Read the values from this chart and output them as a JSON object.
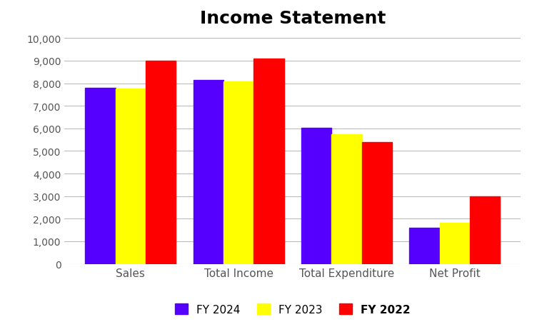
{
  "title": "Income Statement",
  "categories": [
    "Sales",
    "Total Income",
    "Total Expenditure",
    "Net Profit"
  ],
  "series": [
    {
      "label": "FY 2024",
      "color": "#5500FF",
      "values": [
        7800,
        8150,
        6020,
        1600
      ]
    },
    {
      "label": "FY 2023",
      "color": "#FFFF00",
      "values": [
        7750,
        8070,
        5750,
        1820
      ]
    },
    {
      "label": "FY 2022",
      "color": "#FF0000",
      "values": [
        9000,
        9080,
        5380,
        3000
      ]
    }
  ],
  "ylim": [
    0,
    10000
  ],
  "yticks": [
    0,
    1000,
    2000,
    3000,
    4000,
    5000,
    6000,
    7000,
    8000,
    9000,
    10000
  ],
  "title_fontsize": 18,
  "title_fontweight": "bold",
  "background_color": "#ffffff",
  "grid_color": "#bbbbbb",
  "bar_width": 0.28,
  "figsize": [
    7.52,
    4.52
  ],
  "dpi": 100
}
